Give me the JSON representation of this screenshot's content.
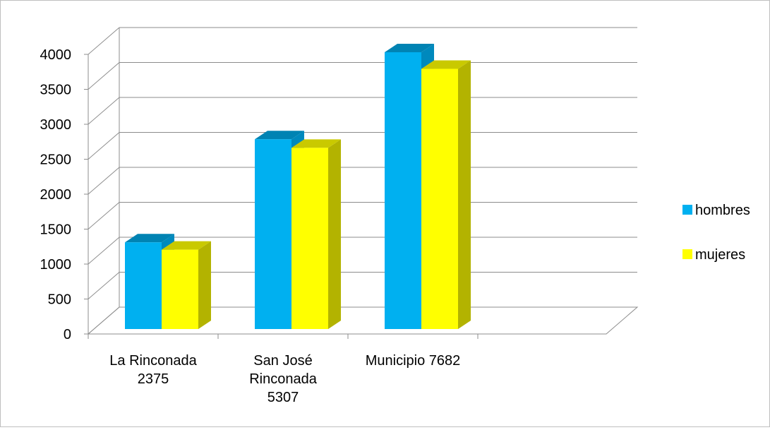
{
  "chart_data": {
    "type": "bar",
    "categories": [
      "La Rinconada 2375",
      "San José Rinconada 5307",
      "Municipio 7682"
    ],
    "category_lines": [
      [
        "La Rinconada",
        "2375"
      ],
      [
        "San José",
        "Rinconada",
        "5307"
      ],
      [
        "Municipio 7682"
      ]
    ],
    "series": [
      {
        "name": "hombres",
        "values": [
          1240,
          2715,
          3960
        ],
        "color": "#00b0f0",
        "top_color": "#0083b3"
      },
      {
        "name": "mujeres",
        "values": [
          1135,
          2592,
          3722
        ],
        "color": "#ffff00",
        "top_color": "#c9c900"
      }
    ],
    "ylim": [
      0,
      4000
    ],
    "yticks": [
      "0",
      "500",
      "1000",
      "1500",
      "2000",
      "2500",
      "3000",
      "3500",
      "4000"
    ],
    "grid": true,
    "three_d": true,
    "legend": "right",
    "title": "",
    "xlabel": "",
    "ylabel": ""
  }
}
